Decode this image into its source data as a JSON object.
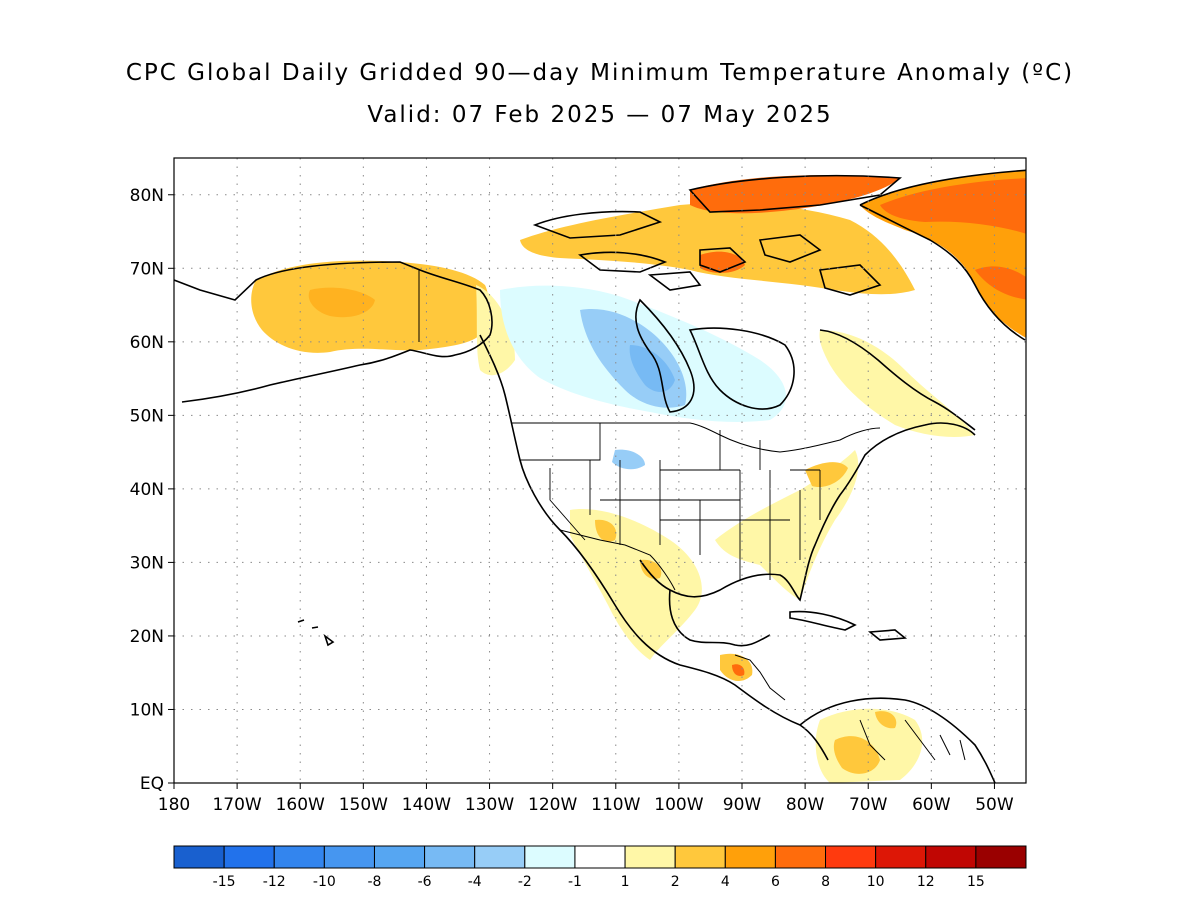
{
  "title": {
    "line1": "CPC Global Daily Gridded 90—day Minimum Temperature Anomaly (ºC)",
    "line2": "Valid: 07 Feb 2025 — 07 May 2025"
  },
  "map": {
    "lon_range": [
      -180,
      -45
    ],
    "lat_range": [
      0,
      85
    ],
    "lat_ticks": [
      {
        "value": 80,
        "label": "80N"
      },
      {
        "value": 70,
        "label": "70N"
      },
      {
        "value": 60,
        "label": "60N"
      },
      {
        "value": 50,
        "label": "50N"
      },
      {
        "value": 40,
        "label": "40N"
      },
      {
        "value": 30,
        "label": "30N"
      },
      {
        "value": 20,
        "label": "20N"
      },
      {
        "value": 10,
        "label": "10N"
      },
      {
        "value": 0,
        "label": "EQ"
      }
    ],
    "lon_ticks": [
      {
        "value": -180,
        "label": "180"
      },
      {
        "value": -170,
        "label": "170W"
      },
      {
        "value": -160,
        "label": "160W"
      },
      {
        "value": -150,
        "label": "150W"
      },
      {
        "value": -140,
        "label": "140W"
      },
      {
        "value": -130,
        "label": "130W"
      },
      {
        "value": -120,
        "label": "120W"
      },
      {
        "value": -110,
        "label": "110W"
      },
      {
        "value": -100,
        "label": "100W"
      },
      {
        "value": -90,
        "label": "90W"
      },
      {
        "value": -80,
        "label": "80W"
      },
      {
        "value": -70,
        "label": "70W"
      },
      {
        "value": -60,
        "label": "60W"
      },
      {
        "value": -50,
        "label": "50W"
      }
    ],
    "grid": true
  },
  "colorbar": {
    "colors": [
      "#1960cf",
      "#2272eb",
      "#3385ee",
      "#4696f0",
      "#56a6f2",
      "#77baf4",
      "#97cdf7",
      "#dcfcff",
      "#ffffff",
      "#fff7a7",
      "#ffc83c",
      "#ffa00a",
      "#ff6c0c",
      "#ff3a0e",
      "#dd1706",
      "#c00603",
      "#9a0000"
    ],
    "labels": [
      "-15",
      "-12",
      "-10",
      "-8",
      "-6",
      "-4",
      "-2",
      "-1",
      "1",
      "2",
      "4",
      "6",
      "8",
      "10",
      "12",
      "15"
    ]
  },
  "regions": [
    {
      "name": "Alaska",
      "color": "#ffc83c"
    },
    {
      "name": "Canadian Arctic Archipelago",
      "color": "#ff6c0c"
    },
    {
      "name": "Greenland",
      "color": "#ff6c0c"
    },
    {
      "name": "Hudson Bay region",
      "color": "#77baf4"
    },
    {
      "name": "Eastern United States",
      "color": "#fff7a7"
    },
    {
      "name": "Mexico",
      "color": "#fff7a7"
    },
    {
      "name": "Northern South America",
      "color": "#ffc83c"
    }
  ]
}
